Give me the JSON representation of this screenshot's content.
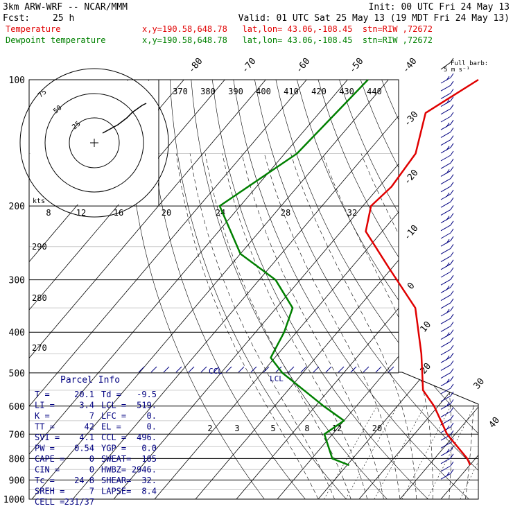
{
  "header": {
    "model": "3km ARW-WRF -- NCAR/MMM",
    "init": "Init: 00 UTC Fri 24 May 13",
    "fcst_label": "Fcst:",
    "fcst_value": "25 h",
    "valid": "Valid: 01 UTC Sat 25 May 13 (19 MDT Fri 24 May 13)"
  },
  "legend": [
    {
      "name": "Temperature",
      "info": "x,y=190.58,648.78   lat,lon= 43.06,-108.45  stn=RIW ,72672",
      "color": "#e00000"
    },
    {
      "name": "Dewpoint temperature",
      "info": "x,y=190.58,648.78   lat,lon= 43.06,-108.45  stn=RIW ,72672",
      "color": "#008000"
    }
  ],
  "barb_key": {
    "line1": "Full barb:",
    "line2": "5 m s⁻¹"
  },
  "hodograph": {
    "axis_label": "kts",
    "ring_labels": [
      "25",
      "50",
      "75"
    ]
  },
  "parcel_info": {
    "title": "Parcel Info",
    "rows": [
      [
        "T   =",
        "20.1",
        "Td  =",
        "-9.5"
      ],
      [
        "LI  =",
        "3.4",
        "LCL =",
        "519."
      ],
      [
        "K   =",
        "7",
        "LFC =",
        "0."
      ],
      [
        "TT  =",
        "42",
        "EL  =",
        "0."
      ],
      [
        "SVI =",
        "4.1",
        "CCL =",
        "496."
      ],
      [
        "PW  =",
        "0.54",
        "YGP =",
        "0.0"
      ],
      [
        "CAPE =",
        "0",
        "SWEAT=",
        "105"
      ],
      [
        "CIN =",
        "0",
        "HWBZ=",
        "2946."
      ],
      [
        "Tc  =",
        "24.8",
        "SHEAR=",
        "32."
      ],
      [
        "SREH =",
        "7",
        "LAPSE=",
        "8.4"
      ],
      [
        "CELL =",
        "231/37",
        "",
        ""
      ]
    ]
  },
  "annotations": {
    "ccl": "CCL",
    "lcl": "LCL"
  },
  "chart_data": {
    "type": "line",
    "subtype": "skew-T log-P sounding",
    "pressure_levels_hPa": [
      100,
      200,
      300,
      400,
      500,
      600,
      700,
      800,
      900,
      1000
    ],
    "isotherm_labels_C": [
      -80,
      -70,
      -60,
      -50,
      -40,
      -30,
      -20,
      -10,
      0,
      10,
      20,
      30,
      40
    ],
    "theta_labels_K": [
      370,
      380,
      390,
      400,
      410,
      420,
      430,
      440
    ],
    "dry_adiabat_labels_K": [
      290,
      280,
      270
    ],
    "mixing_ratio_labels": [
      2,
      3,
      5,
      8,
      12,
      20
    ],
    "theta_e_labels_C": [
      8,
      12,
      16,
      20,
      24,
      28,
      32
    ],
    "series": [
      {
        "name": "Temperature",
        "color": "#e00000",
        "points": [
          [
            100,
            -58
          ],
          [
            120,
            -64
          ],
          [
            150,
            -58
          ],
          [
            180,
            -57
          ],
          [
            200,
            -58
          ],
          [
            230,
            -54
          ],
          [
            280,
            -41
          ],
          [
            350,
            -26
          ],
          [
            450,
            -15
          ],
          [
            550,
            -7
          ],
          [
            600,
            -1
          ],
          [
            700,
            8
          ],
          [
            800,
            18
          ],
          [
            830,
            20.1
          ]
        ]
      },
      {
        "name": "Dewpoint temperature",
        "color": "#008000",
        "points": [
          [
            100,
            -85
          ],
          [
            150,
            -87
          ],
          [
            200,
            -95
          ],
          [
            260,
            -80
          ],
          [
            300,
            -66
          ],
          [
            350,
            -56
          ],
          [
            400,
            -53
          ],
          [
            460,
            -51
          ],
          [
            500,
            -45
          ],
          [
            600,
            -28
          ],
          [
            650,
            -20
          ],
          [
            700,
            -22
          ],
          [
            800,
            -15
          ],
          [
            830,
            -9.5
          ]
        ]
      }
    ]
  }
}
